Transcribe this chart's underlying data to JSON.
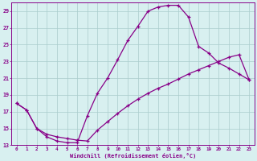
{
  "xlabel": "Windchill (Refroidissement éolien,°C)",
  "line_upper_x": [
    0,
    1,
    2,
    3,
    4,
    5,
    6,
    7,
    8,
    9,
    10,
    11,
    12,
    13,
    14,
    15,
    16,
    17,
    18,
    19,
    20,
    21,
    22,
    23
  ],
  "line_upper_y": [
    18.0,
    17.2,
    15.0,
    14.0,
    13.5,
    13.3,
    13.3,
    16.5,
    19.2,
    21.0,
    23.2,
    25.5,
    27.2,
    29.0,
    29.5,
    29.7,
    29.7,
    28.3,
    24.8,
    24.0,
    22.8,
    22.2,
    21.5,
    20.8
  ],
  "line_lower_x": [
    0,
    1,
    2,
    3,
    4,
    5,
    6,
    7,
    8,
    9,
    10,
    11,
    12,
    13,
    14,
    15,
    16,
    17,
    18,
    19,
    20,
    21,
    22,
    23
  ],
  "line_lower_y": [
    18.0,
    17.2,
    15.0,
    14.3,
    14.0,
    13.8,
    13.6,
    13.5,
    14.8,
    15.8,
    16.8,
    17.7,
    18.5,
    19.2,
    19.8,
    20.3,
    20.9,
    21.5,
    22.0,
    22.5,
    23.0,
    23.5,
    23.8,
    20.8
  ],
  "xlim": [
    -0.5,
    23.5
  ],
  "ylim": [
    13,
    30
  ],
  "xticks": [
    0,
    1,
    2,
    3,
    4,
    5,
    6,
    7,
    8,
    9,
    10,
    11,
    12,
    13,
    14,
    15,
    16,
    17,
    18,
    19,
    20,
    21,
    22,
    23
  ],
  "yticks": [
    13,
    15,
    17,
    19,
    21,
    23,
    25,
    27,
    29
  ],
  "line_color": "#880088",
  "bg_color": "#d8f0f0",
  "grid_color": "#aacccc"
}
